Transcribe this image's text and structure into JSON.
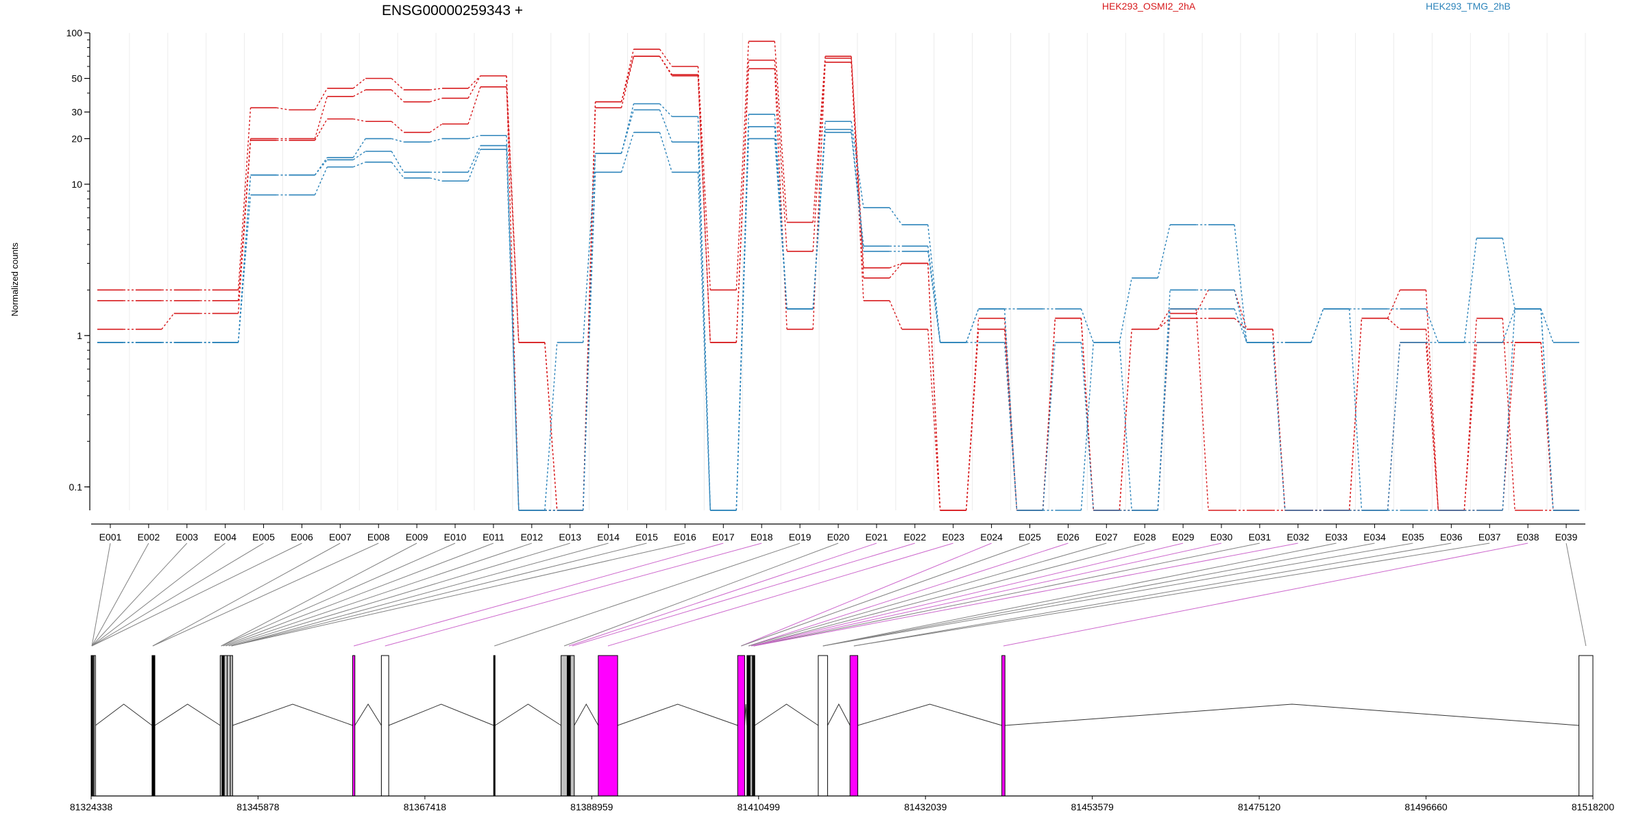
{
  "chart_data": {
    "type": "line",
    "title": "ENSG00000259343 +",
    "ylabel": "Normalized counts",
    "y_scale": "log",
    "ylim": [
      0.07,
      100
    ],
    "y_ticks": [
      0.1,
      1,
      10,
      20,
      30,
      50,
      100
    ],
    "y_tick_labels": [
      "0.1",
      "1",
      "10",
      "20",
      "30",
      "50",
      "100"
    ],
    "legend": [
      {
        "name": "HEK293_OSMI2_2hA",
        "color": "#d7191c"
      },
      {
        "name": "HEK293_TMG_2hB",
        "color": "#2b83ba"
      }
    ],
    "categories": [
      "E001",
      "E002",
      "E003",
      "E004",
      "E005",
      "E006",
      "E007",
      "E008",
      "E009",
      "E010",
      "E011",
      "E012",
      "E013",
      "E014",
      "E015",
      "E016",
      "E017",
      "E018",
      "E019",
      "E020",
      "E021",
      "E022",
      "E023",
      "E024",
      "E025",
      "E026",
      "E027",
      "E028",
      "E029",
      "E030",
      "E031",
      "E032",
      "E033",
      "E034",
      "E035",
      "E036",
      "E037",
      "E038",
      "E039"
    ],
    "series": [
      {
        "group": "HEK293_OSMI2_2hA",
        "color": "#d7191c",
        "values": [
          2.0,
          2.0,
          2.0,
          2.0,
          32,
          31,
          43,
          50,
          42,
          43,
          52,
          0.07,
          0.07,
          35,
          78,
          60,
          2.0,
          88,
          5.6,
          70,
          2.8,
          3.0,
          0.07,
          1.1,
          0.07,
          1.3,
          0.07,
          0.07,
          1.4,
          2.0,
          1.1,
          0.07,
          0.07,
          1.3,
          2.0,
          0.07,
          1.3,
          0.07,
          0.07
        ]
      },
      {
        "group": "HEK293_OSMI2_2hA",
        "color": "#d7191c",
        "values": [
          1.7,
          1.7,
          1.7,
          1.7,
          20,
          20,
          38,
          42,
          35,
          37,
          52,
          0.9,
          0.07,
          35,
          70,
          53,
          0.9,
          66,
          3.6,
          68,
          2.4,
          3.0,
          0.07,
          1.3,
          0.07,
          1.3,
          0.07,
          1.1,
          1.3,
          1.3,
          1.1,
          0.07,
          0.07,
          1.3,
          1.1,
          0.07,
          0.9,
          0.9,
          0.07
        ]
      },
      {
        "group": "HEK293_OSMI2_2hA",
        "color": "#d7191c",
        "values": [
          1.1,
          1.1,
          1.4,
          1.4,
          19.5,
          19.5,
          27,
          26,
          22,
          25,
          44,
          0.9,
          0.07,
          32,
          70,
          52,
          0.9,
          58,
          1.1,
          64,
          1.7,
          1.1,
          0.07,
          1.1,
          0.07,
          1.3,
          0.07,
          1.1,
          1.5,
          0.07,
          0.07,
          0.07,
          0.07,
          0.07,
          0.9,
          0.07,
          0.07,
          0.9,
          0.07
        ]
      },
      {
        "group": "HEK293_TMG_2hB",
        "color": "#2b83ba",
        "values": [
          0.9,
          0.9,
          0.9,
          0.9,
          11.5,
          11.5,
          15,
          20,
          19,
          20,
          21,
          0.07,
          0.9,
          16,
          34,
          28,
          0.07,
          29,
          1.5,
          26,
          7.0,
          5.4,
          0.9,
          1.5,
          1.5,
          1.5,
          0.9,
          2.4,
          5.4,
          5.4,
          0.9,
          0.9,
          1.5,
          1.5,
          1.5,
          0.9,
          4.4,
          1.5,
          0.9
        ]
      },
      {
        "group": "HEK293_TMG_2hB",
        "color": "#2b83ba",
        "values": [
          0.9,
          0.9,
          0.9,
          0.9,
          11.5,
          11.5,
          14.5,
          16.5,
          12,
          12,
          18,
          0.07,
          0.07,
          16,
          31,
          19,
          0.07,
          24,
          1.5,
          23,
          3.9,
          3.9,
          0.9,
          1.5,
          0.07,
          0.9,
          0.07,
          0.07,
          2.0,
          2.0,
          0.9,
          0.9,
          1.5,
          0.07,
          0.9,
          0.9,
          0.9,
          1.5,
          0.07
        ]
      },
      {
        "group": "HEK293_TMG_2hB",
        "color": "#2b83ba",
        "values": [
          0.9,
          0.9,
          0.9,
          0.9,
          8.5,
          8.5,
          13,
          14,
          11,
          10.5,
          17,
          0.07,
          0.07,
          12,
          22,
          12,
          0.07,
          20,
          1.5,
          22,
          3.6,
          3.6,
          0.9,
          0.9,
          0.07,
          0.07,
          0.9,
          0.07,
          1.5,
          1.5,
          0.9,
          0.07,
          0.07,
          0.07,
          0.07,
          0.07,
          0.07,
          1.5,
          0.07
        ]
      }
    ],
    "genomic_axis": {
      "tick_labels": [
        "81324338",
        "81345878",
        "81367418",
        "81388959",
        "81410499",
        "81432039",
        "81453579",
        "81475120",
        "81496660",
        "81518200"
      ],
      "start": 81324338,
      "end": 81518200
    },
    "exons": [
      {
        "id": "E001",
        "start": 81324338,
        "end": 81324520,
        "fill": "#000000"
      },
      {
        "id": "E002",
        "start": 81324520,
        "end": 81324620,
        "fill": "#ffffff"
      },
      {
        "id": "E003",
        "start": 81324620,
        "end": 81324720,
        "fill": "#ffffff"
      },
      {
        "id": "E004",
        "start": 81324720,
        "end": 81324780,
        "fill": "#ffffff"
      },
      {
        "id": "E005",
        "start": 81332200,
        "end": 81332330,
        "fill": "#000000"
      },
      {
        "id": "E006",
        "start": 81332330,
        "end": 81332560,
        "fill": "#000000"
      },
      {
        "id": "E007",
        "start": 81341000,
        "end": 81341240,
        "fill": "#c0c0c0"
      },
      {
        "id": "E008",
        "start": 81341240,
        "end": 81341520,
        "fill": "#000000"
      },
      {
        "id": "E009",
        "start": 81341520,
        "end": 81341900,
        "fill": "#c0c0c0"
      },
      {
        "id": "E010",
        "start": 81341900,
        "end": 81342300,
        "fill": "#c0c0c0"
      },
      {
        "id": "E011",
        "start": 81342300,
        "end": 81342600,
        "fill": "#c0c0c0"
      },
      {
        "id": "E012",
        "start": 81358100,
        "end": 81358380,
        "fill": "#ff00ff"
      },
      {
        "id": "E013",
        "start": 81361800,
        "end": 81362750,
        "fill": "#ffffff"
      },
      {
        "id": "E014",
        "start": 81376300,
        "end": 81376450,
        "fill": "#000000"
      },
      {
        "id": "E015",
        "start": 81385000,
        "end": 81385800,
        "fill": "#c0c0c0"
      },
      {
        "id": "E016",
        "start": 81385800,
        "end": 81386200,
        "fill": "#000000"
      },
      {
        "id": "E017",
        "start": 81386200,
        "end": 81386700,
        "fill": "#c0c0c0"
      },
      {
        "id": "E018",
        "start": 81389800,
        "end": 81392300,
        "fill": "#ff00ff"
      },
      {
        "id": "E019",
        "start": 81407800,
        "end": 81408700,
        "fill": "#ff00ff"
      },
      {
        "id": "E020",
        "start": 81409000,
        "end": 81409400,
        "fill": "#000000"
      },
      {
        "id": "E021",
        "start": 81409400,
        "end": 81409700,
        "fill": "#c0c0c0"
      },
      {
        "id": "E022",
        "start": 81409700,
        "end": 81409800,
        "fill": "#ffffff"
      },
      {
        "id": "E023",
        "start": 81409800,
        "end": 81410000,
        "fill": "#000000"
      },
      {
        "id": "E024",
        "start": 81418200,
        "end": 81419400,
        "fill": "#ffffff"
      },
      {
        "id": "E025",
        "start": 81422300,
        "end": 81423300,
        "fill": "#ff00ff"
      },
      {
        "id": "E026",
        "start": 81441900,
        "end": 81442300,
        "fill": "#ff00ff"
      },
      {
        "id": "E027",
        "start": 81516400,
        "end": 81518200,
        "fill": "#ffffff"
      }
    ],
    "connectors": [
      {
        "cat": "E001",
        "exon": "E001",
        "color": "#808080"
      },
      {
        "cat": "E002",
        "exon": "E001",
        "color": "#808080"
      },
      {
        "cat": "E003",
        "exon": "E001",
        "color": "#808080"
      },
      {
        "cat": "E004",
        "exon": "E001",
        "color": "#808080"
      },
      {
        "cat": "E005",
        "exon": "E001",
        "color": "#808080"
      },
      {
        "cat": "E006",
        "exon": "E001",
        "color": "#808080"
      },
      {
        "cat": "E007",
        "exon": "E005",
        "color": "#808080"
      },
      {
        "cat": "E008",
        "exon": "E005",
        "color": "#808080"
      },
      {
        "cat": "E009",
        "exon": "E007",
        "color": "#808080"
      },
      {
        "cat": "E010",
        "exon": "E007",
        "color": "#808080"
      },
      {
        "cat": "E011",
        "exon": "E008",
        "color": "#808080"
      },
      {
        "cat": "E012",
        "exon": "E009",
        "color": "#808080"
      },
      {
        "cat": "E013",
        "exon": "E010",
        "color": "#808080"
      },
      {
        "cat": "E014",
        "exon": "E011",
        "color": "#808080"
      },
      {
        "cat": "E015",
        "exon": "E011",
        "color": "#808080"
      },
      {
        "cat": "E016",
        "exon": "E011",
        "color": "#808080"
      },
      {
        "cat": "E017",
        "exon": "E012",
        "color": "#cc66cc"
      },
      {
        "cat": "E018",
        "exon": "E013",
        "color": "#cc66cc"
      },
      {
        "cat": "E019",
        "exon": "E014",
        "color": "#808080"
      },
      {
        "cat": "E020",
        "exon": "E015",
        "color": "#808080"
      },
      {
        "cat": "E021",
        "exon": "E016",
        "color": "#cc66cc"
      },
      {
        "cat": "E022",
        "exon": "E017",
        "color": "#cc66cc"
      },
      {
        "cat": "E023",
        "exon": "E018",
        "color": "#cc66cc"
      },
      {
        "cat": "E024",
        "exon": "E019",
        "color": "#cc66cc"
      },
      {
        "cat": "E025",
        "exon": "E019",
        "color": "#808080"
      },
      {
        "cat": "E026",
        "exon": "E020",
        "color": "#cc66cc"
      },
      {
        "cat": "E027",
        "exon": "E020",
        "color": "#808080"
      },
      {
        "cat": "E028",
        "exon": "E021",
        "color": "#808080"
      },
      {
        "cat": "E029",
        "exon": "E021",
        "color": "#cc66cc"
      },
      {
        "cat": "E030",
        "exon": "E022",
        "color": "#cc66cc"
      },
      {
        "cat": "E031",
        "exon": "E023",
        "color": "#808080"
      },
      {
        "cat": "E032",
        "exon": "E023",
        "color": "#cc66cc"
      },
      {
        "cat": "E033",
        "exon": "E024",
        "color": "#808080"
      },
      {
        "cat": "E034",
        "exon": "E024",
        "color": "#808080"
      },
      {
        "cat": "E035",
        "exon": "E024",
        "color": "#808080"
      },
      {
        "cat": "E036",
        "exon": "E025",
        "color": "#808080"
      },
      {
        "cat": "E037",
        "exon": "E025",
        "color": "#808080"
      },
      {
        "cat": "E038",
        "exon": "E026",
        "color": "#cc66cc"
      },
      {
        "cat": "E039",
        "exon": "E027",
        "color": "#808080"
      }
    ]
  }
}
